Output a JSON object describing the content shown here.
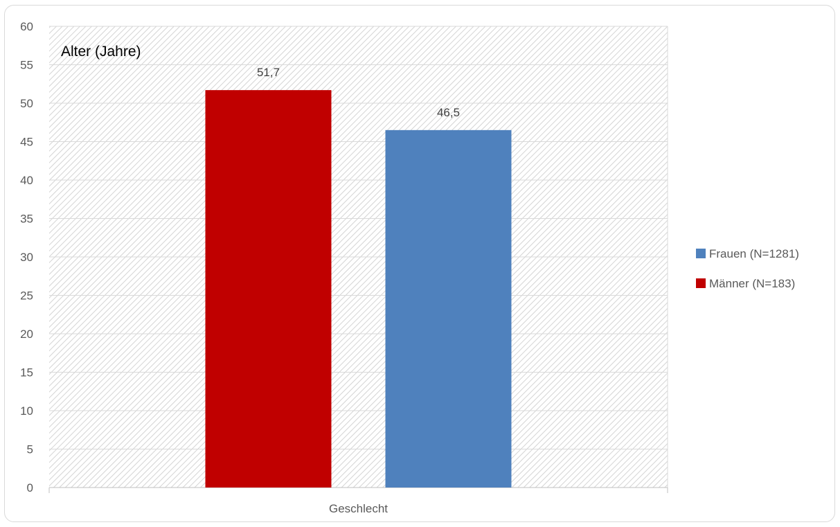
{
  "chart_data": {
    "type": "bar",
    "ylabel": "Alter (Jahre)",
    "xlabel": "",
    "categories": [
      "Geschlecht"
    ],
    "ylim": [
      0,
      60
    ],
    "yticks": [
      0,
      5,
      10,
      15,
      20,
      25,
      30,
      35,
      40,
      45,
      50,
      55,
      60
    ],
    "grid": true,
    "legend_position": "right",
    "series": [
      {
        "name": "Männer (N=183)",
        "values": [
          51.7
        ],
        "data_label": "51,7",
        "color": "#C00000"
      },
      {
        "name": "Frauen (N=1281)",
        "values": [
          46.5
        ],
        "data_label": "46,5",
        "color": "#4F81BD"
      }
    ],
    "legend_order": [
      "Frauen (N=1281)",
      "Männer (N=183)"
    ]
  }
}
